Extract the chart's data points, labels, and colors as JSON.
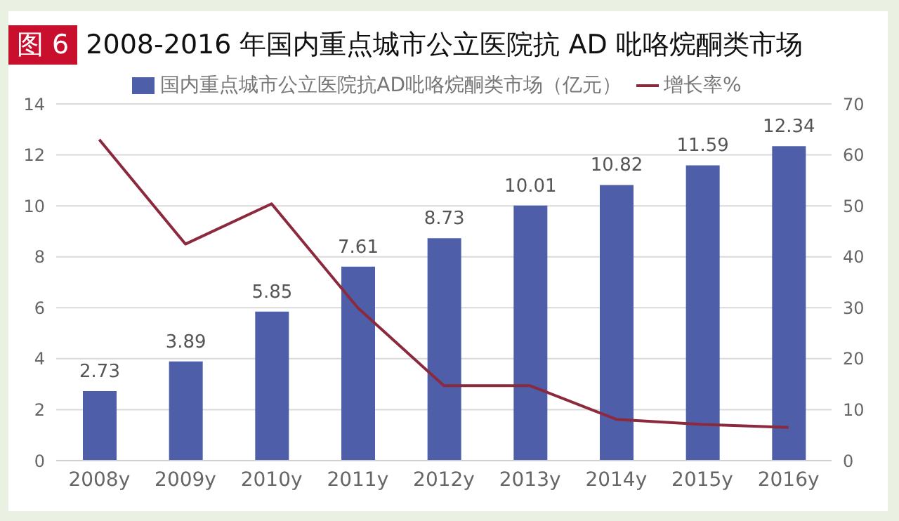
{
  "chart_data": {
    "type": "bar",
    "title": "2008-2016 年国内重点城市公立医院抗 AD 吡咯烷酮类市场",
    "annotations": [
      "图 6"
    ],
    "categories": [
      "2008y",
      "2009y",
      "2010y",
      "2011y",
      "2012y",
      "2013y",
      "2014y",
      "2015y",
      "2016y"
    ],
    "series": [
      {
        "name": "国内重点城市公立医院抗AD吡咯烷酮类市场（亿元）",
        "color": "#4f5ea8",
        "values": [
          2.73,
          3.89,
          5.85,
          7.61,
          8.73,
          10.01,
          10.82,
          11.59,
          12.34
        ],
        "value_labels": [
          "2.73",
          "3.89",
          "5.85",
          "7.61",
          "8.73",
          "10.01",
          "10.82",
          "11.59",
          "12.34"
        ]
      },
      {
        "name": "增长率%",
        "type": "line",
        "axis": "y2",
        "color": "#8b2a3e",
        "values": [
          63,
          42.5,
          50.4,
          30,
          14.7,
          14.7,
          8.1,
          7.1,
          6.5
        ]
      }
    ],
    "ylim": [
      0,
      14
    ],
    "yticks": [
      0,
      2,
      4,
      6,
      8,
      10,
      12,
      14
    ],
    "y2lim": [
      0,
      70
    ],
    "y2ticks": [
      0,
      10,
      20,
      30,
      40,
      50,
      60,
      70
    ],
    "grid": "y",
    "legend": "top",
    "marker": "none",
    "line_style": "solid"
  }
}
